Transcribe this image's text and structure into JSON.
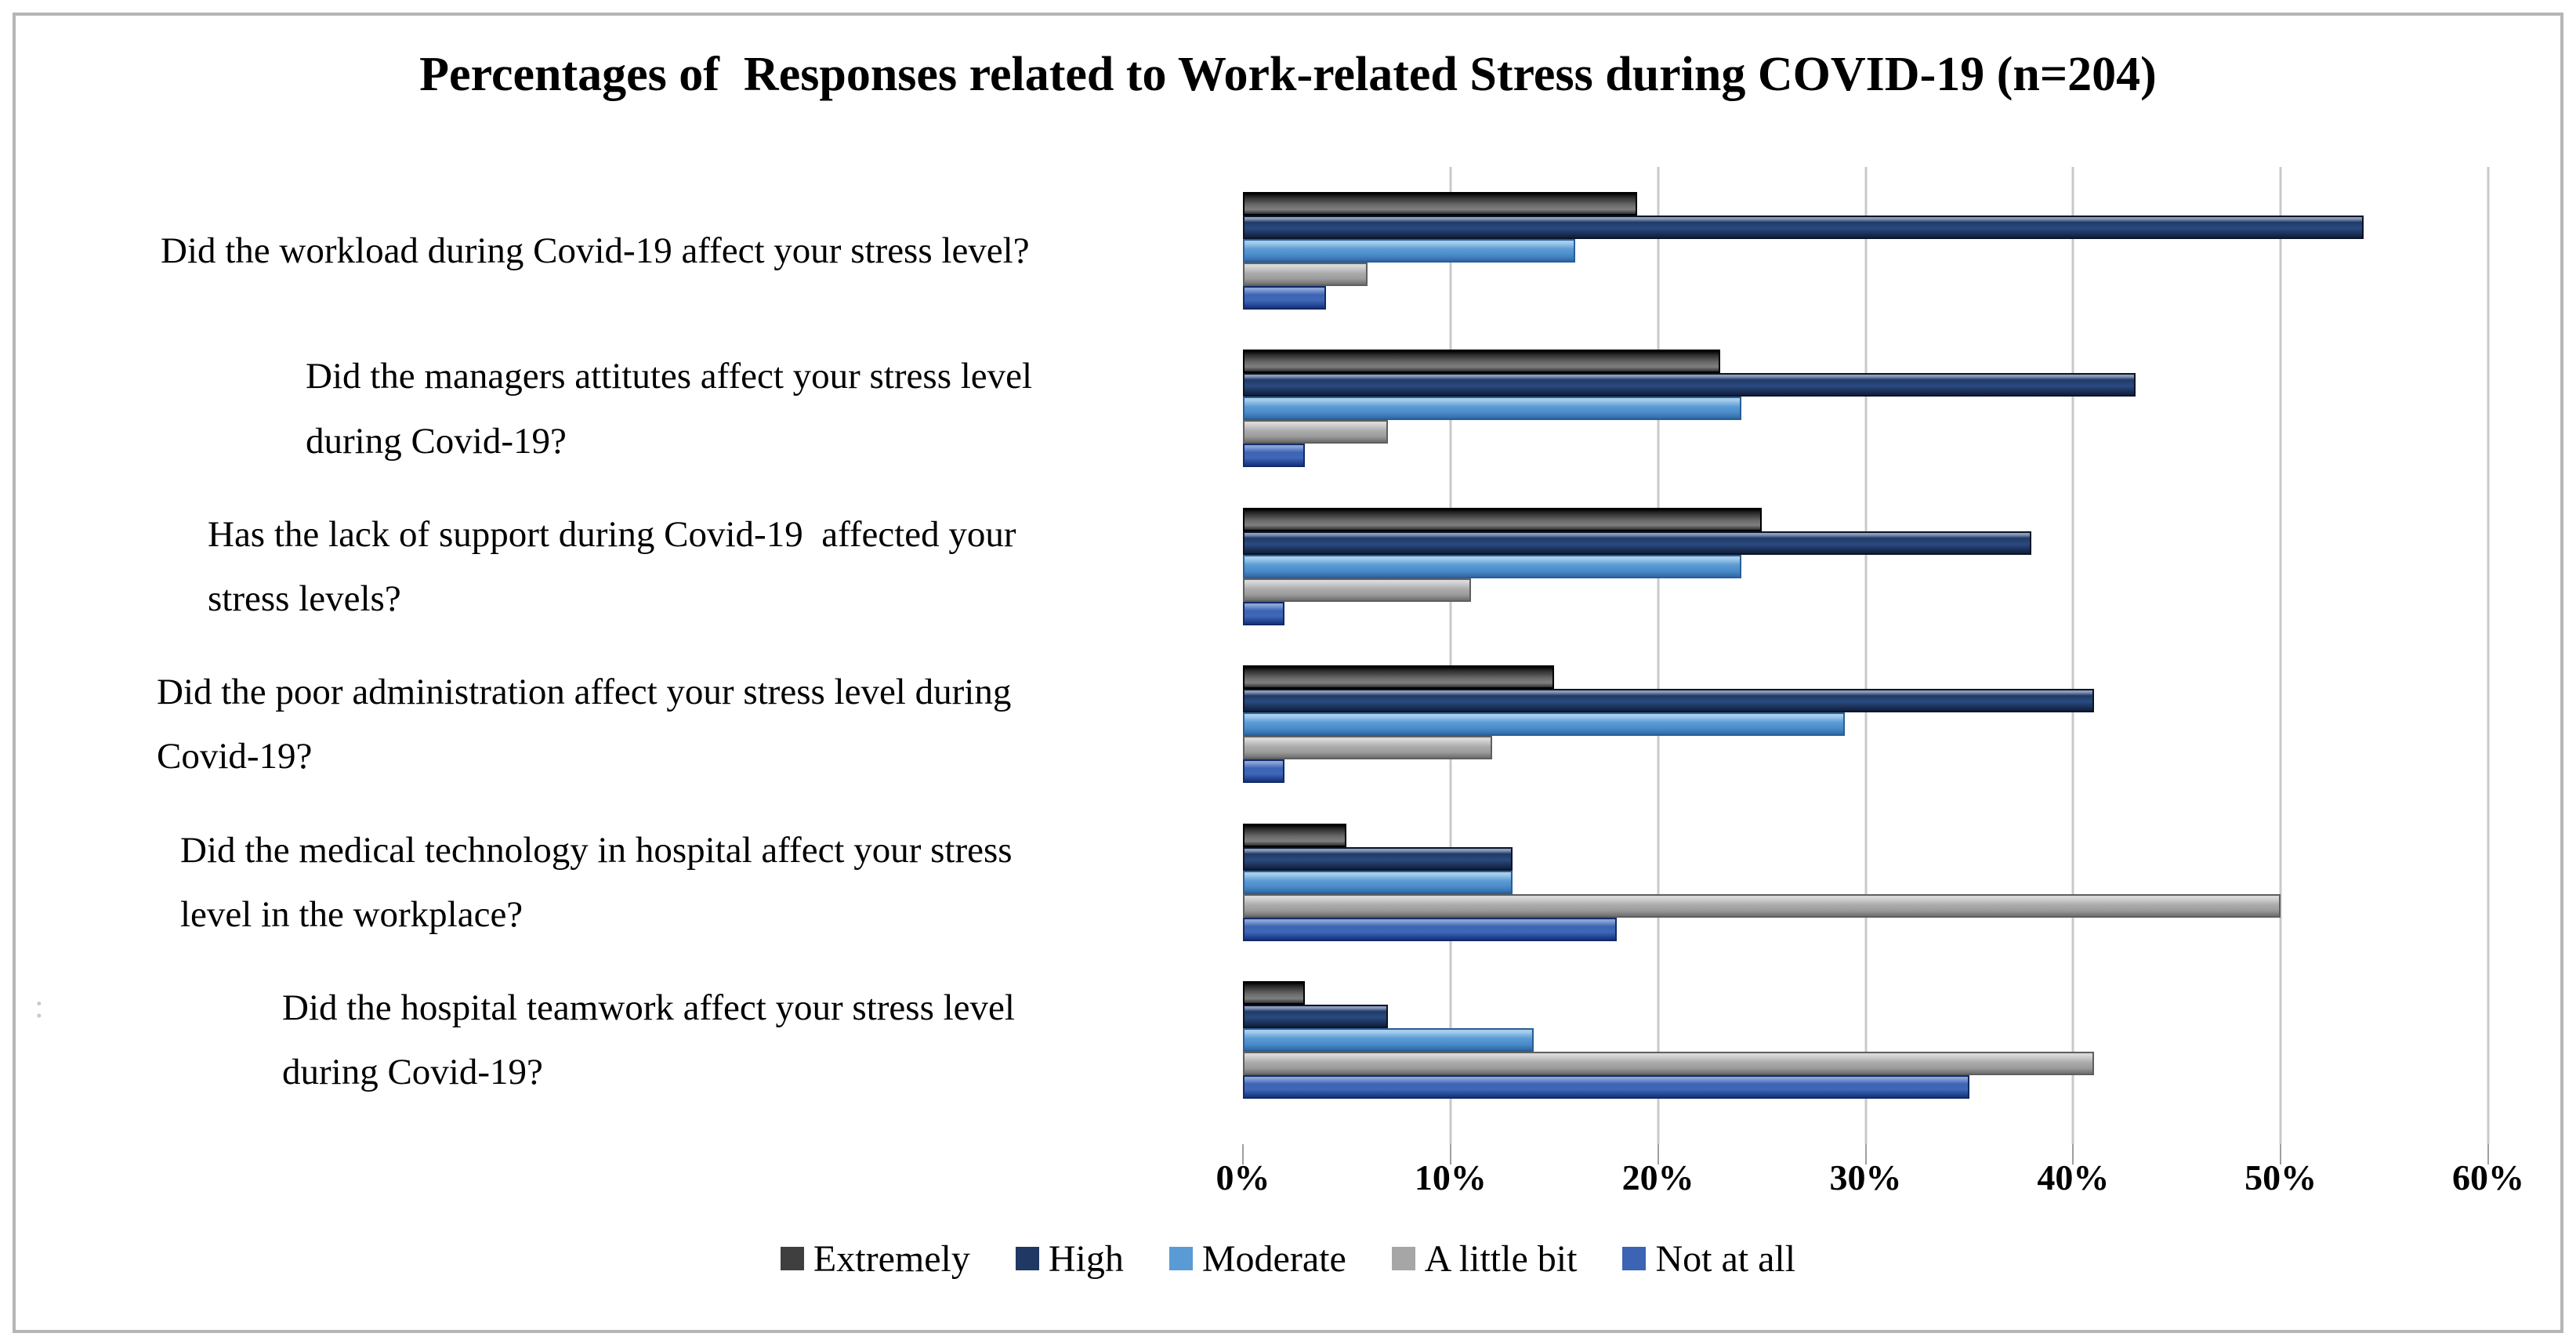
{
  "title": "Percentages of  Responses related to Work-related Stress during COVID-19 (n=204)",
  "stray_mark": ":",
  "chart_data": {
    "type": "bar",
    "orientation": "horizontal",
    "title": "Percentages of Responses related to Work-related Stress during COVID-19 (n=204)",
    "categories": [
      "Did the workload during Covid-19 affect your stress level?",
      "Did the managers attitutes affect your stress level\nduring Covid-19?",
      "Has the lack of support during Covid-19  affected your\nstress levels?",
      "Did the poor administration affect your stress level during\nCovid-19?",
      "Did the medical technology in hospital affect your stress\nlevel in the workplace?",
      "Did the hospital teamwork affect your stress level\nduring Covid-19?"
    ],
    "series": [
      {
        "name": "Extremely",
        "color": "#3f3f3f",
        "values": [
          19,
          23,
          25,
          15,
          5,
          3
        ]
      },
      {
        "name": "High",
        "color": "#1f3864",
        "values": [
          54,
          43,
          38,
          41,
          13,
          7
        ]
      },
      {
        "name": "Moderate",
        "color": "#5b9bd5",
        "values": [
          16,
          24,
          24,
          29,
          13,
          14
        ]
      },
      {
        "name": "A little bit",
        "color": "#a6a6a6",
        "values": [
          6,
          7,
          11,
          12,
          50,
          41
        ]
      },
      {
        "name": "Not at all",
        "color": "#3c63b4",
        "values": [
          4,
          3,
          2,
          2,
          18,
          35
        ]
      }
    ],
    "x_axis": {
      "min": 0,
      "max": 60,
      "tick_step": 10,
      "ticks": [
        "0%",
        "10%",
        "20%",
        "30%",
        "40%",
        "50%",
        "60%"
      ]
    },
    "grid": true,
    "gridline_color": "#c9c9c9",
    "legend_position": "bottom",
    "sample_size": 204
  }
}
